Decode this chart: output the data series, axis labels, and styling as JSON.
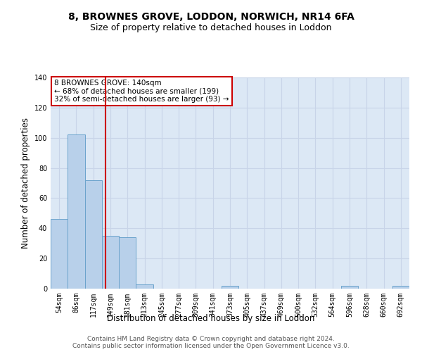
{
  "title1": "8, BROWNES GROVE, LODDON, NORWICH, NR14 6FA",
  "title2": "Size of property relative to detached houses in Loddon",
  "xlabel": "Distribution of detached houses by size in Loddon",
  "ylabel": "Number of detached properties",
  "categories": [
    "54sqm",
    "86sqm",
    "117sqm",
    "149sqm",
    "181sqm",
    "213sqm",
    "245sqm",
    "277sqm",
    "309sqm",
    "341sqm",
    "373sqm",
    "405sqm",
    "437sqm",
    "469sqm",
    "500sqm",
    "532sqm",
    "564sqm",
    "596sqm",
    "628sqm",
    "660sqm",
    "692sqm"
  ],
  "values": [
    46,
    102,
    72,
    35,
    34,
    3,
    0,
    0,
    0,
    0,
    2,
    0,
    0,
    0,
    0,
    0,
    0,
    2,
    0,
    0,
    2
  ],
  "bar_color": "#b8d0ea",
  "bar_edge_color": "#6ba3cc",
  "vline_color": "#cc0000",
  "annotation_text": "8 BROWNES GROVE: 140sqm\n← 68% of detached houses are smaller (199)\n32% of semi-detached houses are larger (93) →",
  "annotation_box_color": "#cc0000",
  "ylim": [
    0,
    140
  ],
  "grid_color": "#c8d4e8",
  "background_color": "#dce8f5",
  "footer1": "Contains HM Land Registry data © Crown copyright and database right 2024.",
  "footer2": "Contains public sector information licensed under the Open Government Licence v3.0.",
  "title1_fontsize": 10,
  "title2_fontsize": 9,
  "axis_label_fontsize": 8.5,
  "tick_fontsize": 7,
  "footer_fontsize": 6.5,
  "annotation_fontsize": 7.5
}
